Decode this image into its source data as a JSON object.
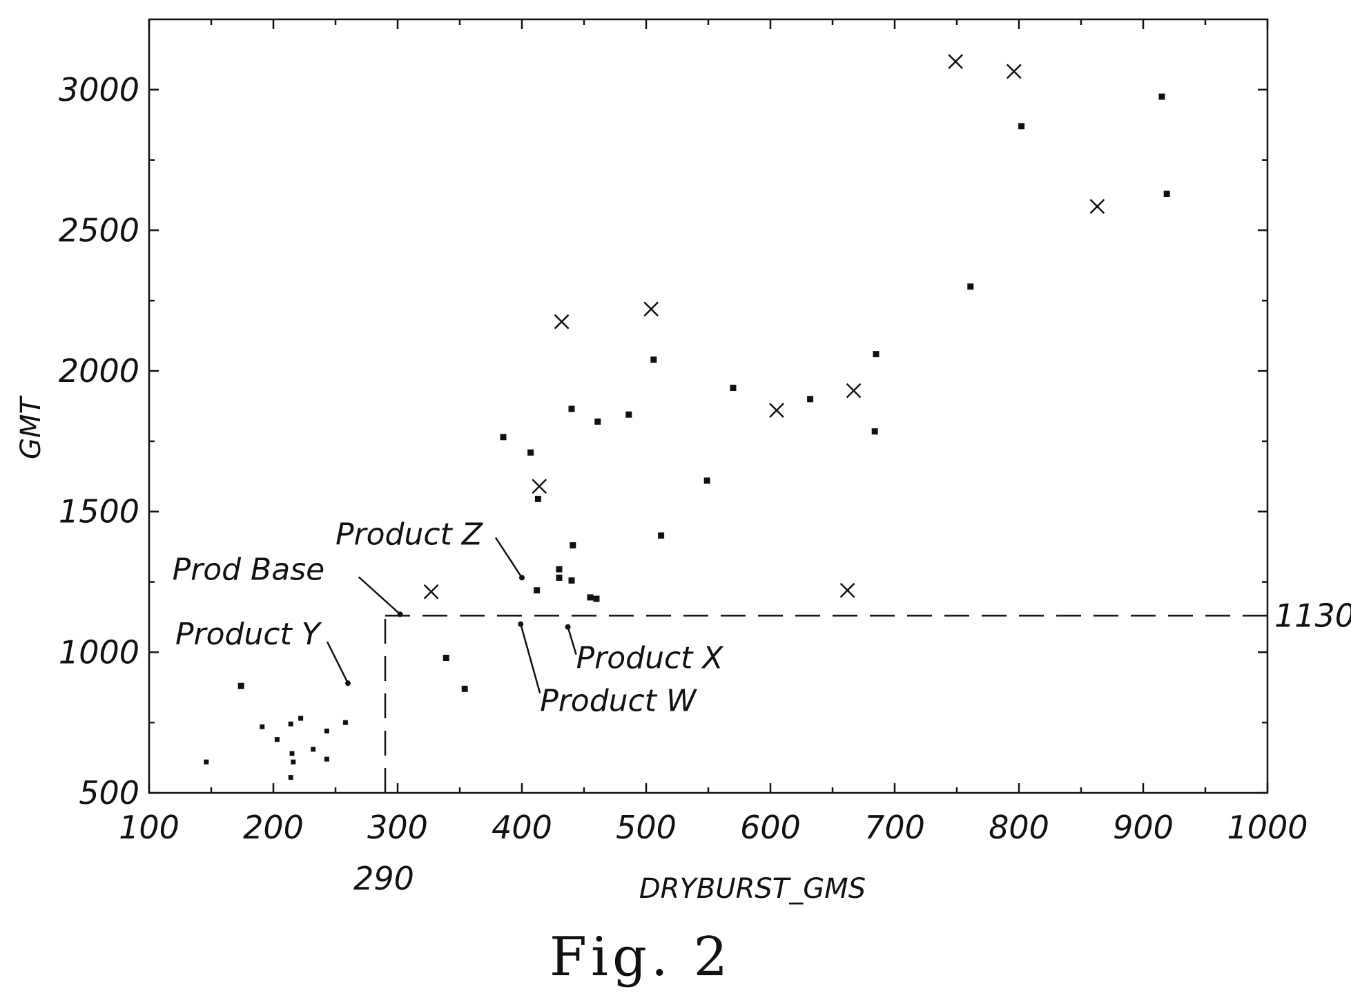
{
  "chart_data": {
    "type": "scatter",
    "title": "",
    "xlabel": "DRYBURST_GMS",
    "ylabel": "GMT",
    "xlim": [
      100,
      1000
    ],
    "ylim": [
      500,
      3250
    ],
    "x_ticks": [
      100,
      200,
      300,
      400,
      500,
      600,
      700,
      800,
      900,
      1000
    ],
    "x_tick_labels": [
      "100",
      "200",
      "300",
      "400",
      "500",
      "600",
      "700",
      "800",
      "900",
      "1000"
    ],
    "y_ticks": [
      500,
      1000,
      1500,
      2000,
      2500,
      3000
    ],
    "y_tick_labels": [
      "500",
      "1000",
      "1500",
      "2000",
      "2500",
      "3000"
    ],
    "grid": false,
    "reference_lines": [
      {
        "orientation": "horizontal",
        "value": 1130,
        "label": "1130",
        "from_x": 290,
        "to_x": 1000
      },
      {
        "orientation": "vertical",
        "value": 290,
        "label": "290",
        "from_y": 500,
        "to_y": 1130
      }
    ],
    "series": [
      {
        "marker": "square",
        "points": [
          [
            385,
            1765
          ],
          [
            407,
            1710
          ],
          [
            413,
            1545
          ],
          [
            440,
            1865
          ],
          [
            461,
            1820
          ],
          [
            486,
            1845
          ],
          [
            441,
            1380
          ],
          [
            430,
            1295
          ],
          [
            430,
            1265
          ],
          [
            440,
            1255
          ],
          [
            412,
            1220
          ],
          [
            455,
            1195
          ],
          [
            460,
            1190
          ],
          [
            506,
            2040
          ],
          [
            512,
            1415
          ],
          [
            549,
            1610
          ],
          [
            570,
            1940
          ],
          [
            632,
            1900
          ],
          [
            685,
            2060
          ],
          [
            684,
            1785
          ],
          [
            761,
            2300
          ],
          [
            802,
            2870
          ],
          [
            915,
            2975
          ],
          [
            919,
            2630
          ],
          [
            174,
            880
          ],
          [
            354,
            870
          ],
          [
            339,
            980
          ]
        ]
      },
      {
        "marker": "x",
        "points": [
          [
            327,
            1215
          ],
          [
            414,
            1590
          ],
          [
            432,
            2175
          ],
          [
            504,
            2220
          ],
          [
            605,
            1860
          ],
          [
            667,
            1930
          ],
          [
            662,
            1220
          ],
          [
            749,
            3100
          ],
          [
            796,
            3065
          ],
          [
            863,
            2585
          ]
        ]
      },
      {
        "marker": "small",
        "points": [
          [
            146,
            610
          ],
          [
            191,
            735
          ],
          [
            203,
            690
          ],
          [
            214,
            745
          ],
          [
            222,
            765
          ],
          [
            215,
            640
          ],
          [
            216,
            610
          ],
          [
            214,
            555
          ],
          [
            232,
            655
          ],
          [
            243,
            720
          ],
          [
            243,
            620
          ],
          [
            258,
            750
          ]
        ]
      }
    ],
    "annotations": [
      {
        "text": "Product Z",
        "x": 400,
        "y": 1265
      },
      {
        "text": "Prod Base",
        "x": 302,
        "y": 1135
      },
      {
        "text": "Product Y",
        "x": 260,
        "y": 890
      },
      {
        "text": "Product X",
        "x": 437,
        "y": 1090
      },
      {
        "text": "Product W",
        "x": 399,
        "y": 1100
      }
    ],
    "caption": "Fig. 2"
  }
}
